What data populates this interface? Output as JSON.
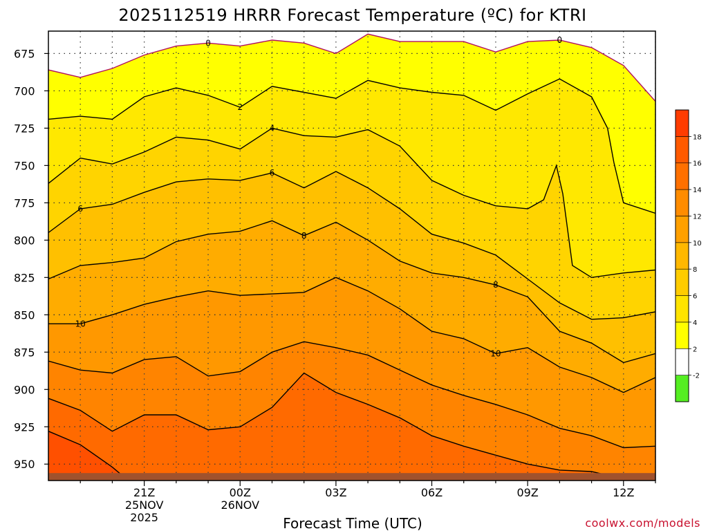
{
  "chart_data": {
    "type": "contour",
    "title": "2025112519 HRRR Forecast Temperature (ºC) for KTRI",
    "xlabel": "Forecast Time (UTC)",
    "ylabel": "",
    "credit": "coolwx.com/models",
    "x_hours": [
      -1,
      18
    ],
    "x_ticks": [
      {
        "hour": 2,
        "lines": [
          "21Z",
          "25NOV",
          "2025"
        ]
      },
      {
        "hour": 5,
        "lines": [
          "00Z",
          "26NOV"
        ]
      },
      {
        "hour": 8,
        "lines": [
          "03Z"
        ]
      },
      {
        "hour": 11,
        "lines": [
          "06Z"
        ]
      },
      {
        "hour": 14,
        "lines": [
          "09Z"
        ]
      },
      {
        "hour": 17,
        "lines": [
          "12Z"
        ]
      }
    ],
    "y_range_hpa": [
      660,
      961
    ],
    "y_ticks": [
      675,
      700,
      725,
      750,
      775,
      800,
      825,
      850,
      875,
      900,
      925,
      950
    ],
    "ground_hpa": 956,
    "colorbar": {
      "colors": [
        "#55ee22",
        "#ffffff",
        "#ffff00",
        "#ffe800",
        "#ffd400",
        "#ffc000",
        "#ffac00",
        "#ff9800",
        "#ff8400",
        "#ff6a00",
        "#ff5000",
        "#ff3000",
        "#ff1000"
      ],
      "ticks": [
        "-2",
        "2",
        "4",
        "6",
        "8",
        "10",
        "12",
        "14",
        "16",
        "18"
      ]
    },
    "contours": [
      {
        "level": 0,
        "color": "#b01060",
        "points": [
          [
            -1,
            686
          ],
          [
            0,
            691
          ],
          [
            1,
            685
          ],
          [
            2,
            676
          ],
          [
            3,
            670
          ],
          [
            4,
            668
          ],
          [
            5,
            670
          ],
          [
            6,
            666
          ],
          [
            7,
            668
          ],
          [
            8,
            675
          ],
          [
            9,
            662
          ],
          [
            10,
            667
          ],
          [
            11,
            667
          ],
          [
            12,
            667
          ],
          [
            13,
            674
          ],
          [
            14,
            667
          ],
          [
            15,
            666
          ],
          [
            16,
            671
          ],
          [
            17,
            683
          ],
          [
            18,
            707
          ]
        ],
        "labels": [
          {
            "x": 4,
            "text": "0"
          },
          {
            "x": 15,
            "text": "0"
          }
        ]
      },
      {
        "level": 2,
        "color": "#000000",
        "points": [
          [
            -1,
            719
          ],
          [
            0,
            717
          ],
          [
            1,
            719
          ],
          [
            2,
            704
          ],
          [
            3,
            698
          ],
          [
            4,
            703
          ],
          [
            5,
            711
          ],
          [
            6,
            697
          ],
          [
            7,
            701
          ],
          [
            8,
            705
          ],
          [
            9,
            693
          ],
          [
            10,
            698
          ],
          [
            11,
            701
          ],
          [
            12,
            703
          ],
          [
            13,
            713
          ],
          [
            14,
            702
          ],
          [
            15,
            692
          ],
          [
            16,
            704
          ],
          [
            16.5,
            725
          ],
          [
            16.7,
            748
          ],
          [
            17,
            775
          ],
          [
            18,
            782
          ]
        ],
        "labels": [
          {
            "x": 5,
            "text": "2"
          }
        ]
      },
      {
        "level": 4,
        "color": "#000000",
        "points": [
          [
            -1,
            762
          ],
          [
            0,
            745
          ],
          [
            1,
            749
          ],
          [
            2,
            741
          ],
          [
            3,
            731
          ],
          [
            4,
            733
          ],
          [
            5,
            739
          ],
          [
            6,
            725
          ],
          [
            7,
            730
          ],
          [
            8,
            731
          ],
          [
            9,
            726
          ],
          [
            10,
            737
          ],
          [
            11,
            760
          ],
          [
            12,
            770
          ],
          [
            13,
            777
          ],
          [
            14,
            779
          ],
          [
            14.5,
            773
          ],
          [
            14.9,
            750
          ],
          [
            15.1,
            769
          ],
          [
            15.4,
            817
          ],
          [
            16,
            825
          ],
          [
            17,
            822
          ],
          [
            18,
            820
          ]
        ],
        "labels": [
          {
            "x": 6,
            "text": "4"
          }
        ]
      },
      {
        "level": 6,
        "color": "#000000",
        "points": [
          [
            -1,
            795
          ],
          [
            0,
            779
          ],
          [
            1,
            776
          ],
          [
            2,
            768
          ],
          [
            3,
            761
          ],
          [
            4,
            759
          ],
          [
            5,
            760
          ],
          [
            6,
            755
          ],
          [
            7,
            765
          ],
          [
            8,
            754
          ],
          [
            9,
            765
          ],
          [
            10,
            779
          ],
          [
            11,
            796
          ],
          [
            12,
            802
          ],
          [
            13,
            810
          ],
          [
            14,
            826
          ],
          [
            15,
            842
          ],
          [
            16,
            853
          ],
          [
            17,
            852
          ],
          [
            18,
            848
          ]
        ],
        "labels": [
          {
            "x": 0,
            "text": "6"
          },
          {
            "x": 6,
            "text": "6"
          }
        ]
      },
      {
        "level": 8,
        "color": "#000000",
        "points": [
          [
            -1,
            826
          ],
          [
            0,
            817
          ],
          [
            1,
            815
          ],
          [
            2,
            812
          ],
          [
            3,
            801
          ],
          [
            4,
            796
          ],
          [
            5,
            794
          ],
          [
            6,
            787
          ],
          [
            7,
            797
          ],
          [
            8,
            788
          ],
          [
            9,
            800
          ],
          [
            10,
            814
          ],
          [
            11,
            822
          ],
          [
            12,
            825
          ],
          [
            13,
            830
          ],
          [
            14,
            838
          ],
          [
            15,
            861
          ],
          [
            16,
            869
          ],
          [
            17,
            882
          ],
          [
            18,
            876
          ]
        ],
        "labels": [
          {
            "x": 7,
            "text": "8"
          },
          {
            "x": 13,
            "text": "8"
          }
        ]
      },
      {
        "level": 10,
        "color": "#000000",
        "points": [
          [
            -1,
            856
          ],
          [
            0,
            856
          ],
          [
            1,
            850
          ],
          [
            2,
            843
          ],
          [
            3,
            838
          ],
          [
            4,
            834
          ],
          [
            5,
            837
          ],
          [
            6,
            836
          ],
          [
            7,
            835
          ],
          [
            8,
            825
          ],
          [
            9,
            834
          ],
          [
            10,
            846
          ],
          [
            11,
            861
          ],
          [
            12,
            866
          ],
          [
            13,
            876
          ],
          [
            14,
            872
          ],
          [
            15,
            885
          ],
          [
            16,
            892
          ],
          [
            17,
            902
          ],
          [
            18,
            892
          ]
        ],
        "labels": [
          {
            "x": 0,
            "text": "10"
          },
          {
            "x": 13,
            "text": "10"
          }
        ]
      },
      {
        "level": 12,
        "color": "#000000",
        "points": [
          [
            -1,
            881
          ],
          [
            0,
            887
          ],
          [
            1,
            889
          ],
          [
            2,
            880
          ],
          [
            3,
            878
          ],
          [
            4,
            891
          ],
          [
            5,
            888
          ],
          [
            6,
            875
          ],
          [
            7,
            868
          ],
          [
            8,
            872
          ],
          [
            9,
            877
          ],
          [
            10,
            887
          ],
          [
            11,
            897
          ],
          [
            12,
            904
          ],
          [
            13,
            910
          ],
          [
            14,
            917
          ],
          [
            15,
            926
          ],
          [
            16,
            931
          ],
          [
            17,
            939
          ],
          [
            18,
            938
          ]
        ],
        "labels": []
      },
      {
        "level": 14,
        "color": "#000000",
        "points": [
          [
            -1,
            906
          ],
          [
            0,
            914
          ],
          [
            1,
            928
          ],
          [
            2,
            917
          ],
          [
            3,
            917
          ],
          [
            4,
            927
          ],
          [
            5,
            925
          ],
          [
            6,
            912
          ],
          [
            7,
            889
          ],
          [
            8,
            902
          ],
          [
            9,
            910
          ],
          [
            10,
            919
          ],
          [
            11,
            931
          ],
          [
            12,
            938
          ],
          [
            13,
            944
          ],
          [
            14,
            950
          ],
          [
            15,
            954
          ],
          [
            16,
            955
          ],
          [
            17,
            960
          ]
        ],
        "labels": []
      },
      {
        "level": 16,
        "color": "#000000",
        "points": [
          [
            -1,
            928
          ],
          [
            0,
            937
          ],
          [
            1,
            952
          ],
          [
            1.5,
            961
          ]
        ],
        "labels": []
      }
    ]
  }
}
